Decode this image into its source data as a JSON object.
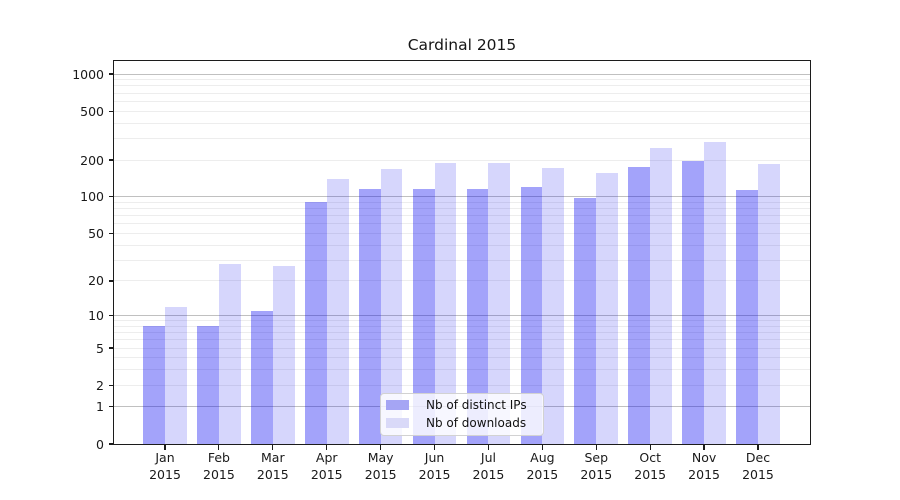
{
  "title": "Cardinal 2015",
  "chart_data": {
    "type": "bar",
    "title": "Cardinal 2015",
    "y_scale": "log-like: y = log10(1+x), zero included at baseline",
    "ylim": [
      0,
      1300
    ],
    "y_ticks": [
      0,
      1,
      2,
      5,
      10,
      20,
      50,
      100,
      200,
      500,
      1000
    ],
    "grid": "horizontal major gridlines at 1,10,100,1000 and faint minors at 2-9 of each decade",
    "categories": [
      "Jan",
      "Feb",
      "Mar",
      "Apr",
      "May",
      "Jun",
      "Jul",
      "Aug",
      "Sep",
      "Oct",
      "Nov",
      "Dec"
    ],
    "year_label": "2015",
    "series": [
      {
        "name": "Nb of distinct IPs",
        "swatch_hex": "#a5a5f4",
        "fill": "rgba(0,0,240,0.36)",
        "values": [
          8,
          8,
          11,
          90,
          117,
          117,
          117,
          120,
          98,
          175,
          197,
          113
        ]
      },
      {
        "name": "Nb of downloads",
        "swatch_hex": "#d9d9f8",
        "fill": "rgba(0,0,235,0.16)",
        "values": [
          12,
          28,
          27,
          140,
          168,
          188,
          188,
          172,
          156,
          252,
          283,
          187
        ]
      }
    ],
    "legend_position": "lower center"
  }
}
